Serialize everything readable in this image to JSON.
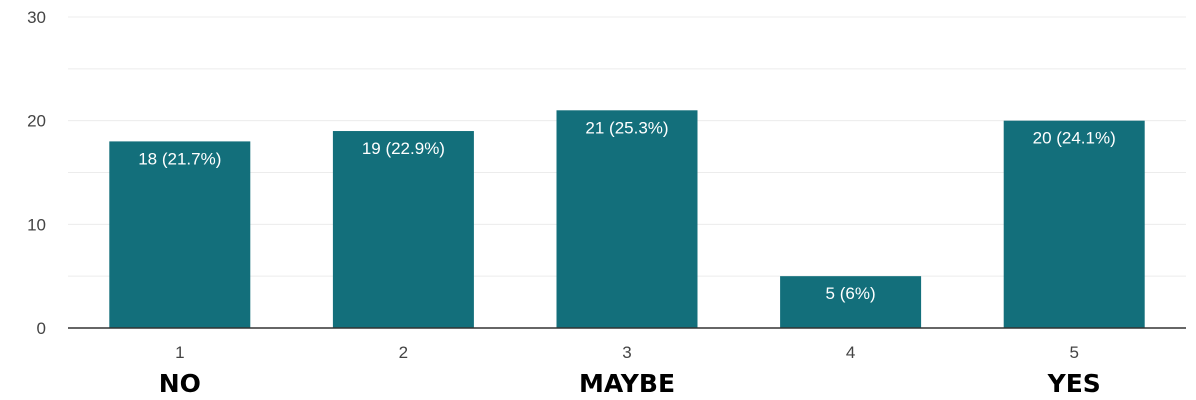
{
  "chart_data": {
    "type": "bar",
    "categories": [
      "1",
      "2",
      "3",
      "4",
      "5"
    ],
    "values": [
      18,
      19,
      21,
      5,
      20
    ],
    "data_labels": [
      "18 (21.7%)",
      "19 (22.9%)",
      "21 (25.3%)",
      "5 (6%)",
      "20 (24.1%)"
    ],
    "ylim": [
      0,
      30
    ],
    "yticks": [
      "0",
      "10",
      "20",
      "30"
    ],
    "ytick_values": [
      0,
      10,
      20,
      30
    ],
    "grid": true,
    "bar_color": "#136f7b",
    "grid_color": "#ececec",
    "axis_color": "#333333",
    "anchor_labels": [
      {
        "category": "1",
        "text": "NO"
      },
      {
        "category": "3",
        "text": "MAYBE"
      },
      {
        "category": "5",
        "text": "YES"
      }
    ]
  }
}
